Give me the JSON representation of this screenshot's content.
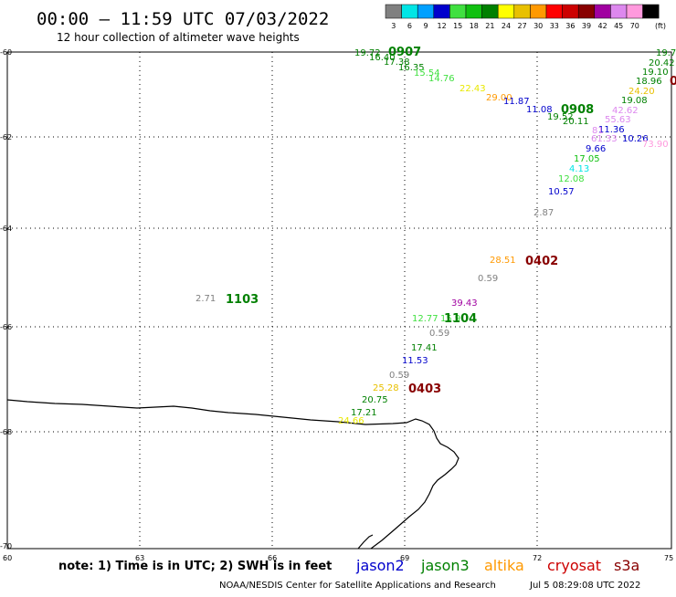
{
  "header": {
    "title": "00:00 – 11:59 UTC 07/03/2022",
    "subtitle": "12 hour collection of altimeter wave heights"
  },
  "color_scale": {
    "unit": "(ft)",
    "bins": [
      {
        "label": "3",
        "color": "#808080"
      },
      {
        "label": "6",
        "color": "#00e5e5"
      },
      {
        "label": "9",
        "color": "#00a0ff"
      },
      {
        "label": "12",
        "color": "#0000cc"
      },
      {
        "label": "15",
        "color": "#40e040"
      },
      {
        "label": "18",
        "color": "#10c010"
      },
      {
        "label": "21",
        "color": "#008000"
      },
      {
        "label": "24",
        "color": "#ffff00"
      },
      {
        "label": "27",
        "color": "#e8c000"
      },
      {
        "label": "30",
        "color": "#ff9900"
      },
      {
        "label": "33",
        "color": "#ff0000"
      },
      {
        "label": "36",
        "color": "#cc0000"
      },
      {
        "label": "39",
        "color": "#880000"
      },
      {
        "label": "42",
        "color": "#a000a0"
      },
      {
        "label": "45",
        "color": "#dd88ee"
      },
      {
        "label": "70",
        "color": "#ff99dd"
      },
      {
        "label": "",
        "color": "#000000"
      }
    ]
  },
  "axes": {
    "lon_labels": [
      "60",
      "63",
      "66",
      "69",
      "72",
      "75"
    ],
    "lat_labels": [
      "-60",
      "-62",
      "-64",
      "-66",
      "-68",
      "-70"
    ]
  },
  "observations": [
    {
      "v": "19.72",
      "c": "#008000"
    },
    {
      "v": "16.40",
      "c": "#008000"
    },
    {
      "v": "17.38",
      "c": "#008000"
    },
    {
      "v": "16.35",
      "c": "#008000"
    },
    {
      "v": "15.54",
      "c": "#40e040"
    },
    {
      "v": "14.76",
      "c": "#40e040"
    },
    {
      "v": "22.43",
      "c": "#e8e800"
    },
    {
      "v": "29.00",
      "c": "#ff9900"
    },
    {
      "v": "11.87",
      "c": "#0000cc"
    },
    {
      "v": "11.08",
      "c": "#0000cc"
    },
    {
      "v": "19.52",
      "c": "#008000"
    },
    {
      "v": "20.11",
      "c": "#008000"
    },
    {
      "v": "19.7",
      "c": "#008000"
    },
    {
      "v": "20.42",
      "c": "#008000"
    },
    {
      "v": "19.10",
      "c": "#008000"
    },
    {
      "v": "18.96",
      "c": "#008000"
    },
    {
      "v": "24.20",
      "c": "#e8c000"
    },
    {
      "v": "19.08",
      "c": "#008000"
    },
    {
      "v": "42.62",
      "c": "#dd88ee"
    },
    {
      "v": "55.63",
      "c": "#dd88ee"
    },
    {
      "v": "11.36",
      "c": "#0000cc"
    },
    {
      "v": "81",
      "c": "#dd88ee"
    },
    {
      "v": "61.33",
      "c": "#dd88ee"
    },
    {
      "v": "10.26",
      "c": "#0000cc"
    },
    {
      "v": "73.90",
      "c": "#ff99dd"
    },
    {
      "v": "9.66",
      "c": "#0000cc"
    },
    {
      "v": "17.05",
      "c": "#10c010"
    },
    {
      "v": "4.13",
      "c": "#00e5e5"
    },
    {
      "v": "12.08",
      "c": "#40e040"
    },
    {
      "v": "10.57",
      "c": "#0000cc"
    },
    {
      "v": "2.87",
      "c": "#808080"
    },
    {
      "v": "28.51",
      "c": "#ff9900"
    },
    {
      "v": "0.59",
      "c": "#808080"
    },
    {
      "v": "2.71",
      "c": "#808080"
    },
    {
      "v": "39.43",
      "c": "#a000a0"
    },
    {
      "v": "12.77",
      "c": "#40e040"
    },
    {
      "v": "15.9",
      "c": "#40e040"
    },
    {
      "v": "0.59",
      "c": "#808080"
    },
    {
      "v": "17.41",
      "c": "#008000"
    },
    {
      "v": "11.53",
      "c": "#0000cc"
    },
    {
      "v": "0.59",
      "c": "#808080"
    },
    {
      "v": "25.28",
      "c": "#e8c000"
    },
    {
      "v": "20.75",
      "c": "#008000"
    },
    {
      "v": "17.21",
      "c": "#008000"
    },
    {
      "v": "24.66",
      "c": "#e8e800"
    }
  ],
  "track_times": [
    {
      "t": "0907",
      "c": "#008000"
    },
    {
      "t": "0908",
      "c": "#008000"
    },
    {
      "t": "0",
      "c": "#880000"
    },
    {
      "t": "0402",
      "c": "#880000"
    },
    {
      "t": "1103",
      "c": "#008000"
    },
    {
      "t": "1104",
      "c": "#008000"
    },
    {
      "t": "0403",
      "c": "#880000"
    }
  ],
  "footer": {
    "note": "note: 1) Time is in UTC; 2) SWH is in feet",
    "satellites": [
      {
        "name": "jason2",
        "color": "#0000cc"
      },
      {
        "name": "jason3",
        "color": "#008000"
      },
      {
        "name": "altika",
        "color": "#ff9900"
      },
      {
        "name": "cryosat",
        "color": "#cc0000"
      },
      {
        "name": "s3a",
        "color": "#880000"
      }
    ],
    "credit": "NOAA/NESDIS Center for Satellite Applications and Research",
    "timestamp": "Jul  5 08:29:08 UTC 2022"
  }
}
